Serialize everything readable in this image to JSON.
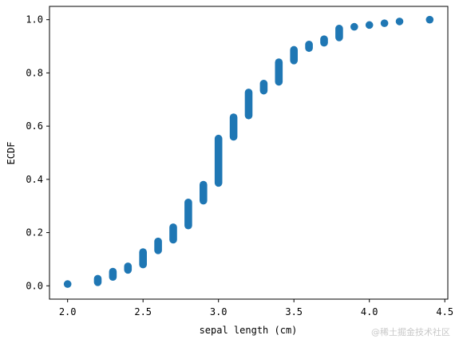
{
  "chart_data": {
    "type": "scatter",
    "xlabel": "sepal length (cm)",
    "ylabel": "ECDF",
    "xlim": [
      1.88,
      4.52
    ],
    "ylim": [
      -0.05,
      1.05
    ],
    "xticks": [
      2.0,
      2.5,
      3.0,
      3.5,
      4.0,
      4.5
    ],
    "xtick_labels": [
      "2.0",
      "2.5",
      "3.0",
      "3.5",
      "4.0",
      "4.5"
    ],
    "yticks": [
      0.0,
      0.2,
      0.4,
      0.6,
      0.8,
      1.0
    ],
    "ytick_labels": [
      "0.0",
      "0.2",
      "0.4",
      "0.6",
      "0.8",
      "1.0"
    ],
    "grid": false,
    "marker_color": "#1f77b4",
    "groups": [
      {
        "x": 2.0,
        "y_from": 0.0067,
        "y_to": 0.0067
      },
      {
        "x": 2.2,
        "y_from": 0.0133,
        "y_to": 0.0267
      },
      {
        "x": 2.3,
        "y_from": 0.0333,
        "y_to": 0.0533
      },
      {
        "x": 2.4,
        "y_from": 0.06,
        "y_to": 0.0733
      },
      {
        "x": 2.5,
        "y_from": 0.08,
        "y_to": 0.1267
      },
      {
        "x": 2.6,
        "y_from": 0.1333,
        "y_to": 0.1667
      },
      {
        "x": 2.7,
        "y_from": 0.1733,
        "y_to": 0.22
      },
      {
        "x": 2.8,
        "y_from": 0.2267,
        "y_to": 0.3133
      },
      {
        "x": 2.9,
        "y_from": 0.32,
        "y_to": 0.38
      },
      {
        "x": 3.0,
        "y_from": 0.3867,
        "y_to": 0.5533
      },
      {
        "x": 3.1,
        "y_from": 0.56,
        "y_to": 0.6333
      },
      {
        "x": 3.2,
        "y_from": 0.64,
        "y_to": 0.7267
      },
      {
        "x": 3.3,
        "y_from": 0.7333,
        "y_to": 0.76
      },
      {
        "x": 3.4,
        "y_from": 0.7667,
        "y_to": 0.84
      },
      {
        "x": 3.5,
        "y_from": 0.8467,
        "y_to": 0.8867
      },
      {
        "x": 3.6,
        "y_from": 0.8933,
        "y_to": 0.9067
      },
      {
        "x": 3.7,
        "y_from": 0.9133,
        "y_to": 0.9267
      },
      {
        "x": 3.8,
        "y_from": 0.9333,
        "y_to": 0.9667
      },
      {
        "x": 3.9,
        "y_from": 0.9733,
        "y_to": 0.9733
      },
      {
        "x": 4.0,
        "y_from": 0.98,
        "y_to": 0.98
      },
      {
        "x": 4.1,
        "y_from": 0.9867,
        "y_to": 0.9867
      },
      {
        "x": 4.2,
        "y_from": 0.9933,
        "y_to": 0.9933
      },
      {
        "x": 4.4,
        "y_from": 1.0,
        "y_to": 1.0
      }
    ]
  },
  "watermark": "@稀土掘金技术社区"
}
